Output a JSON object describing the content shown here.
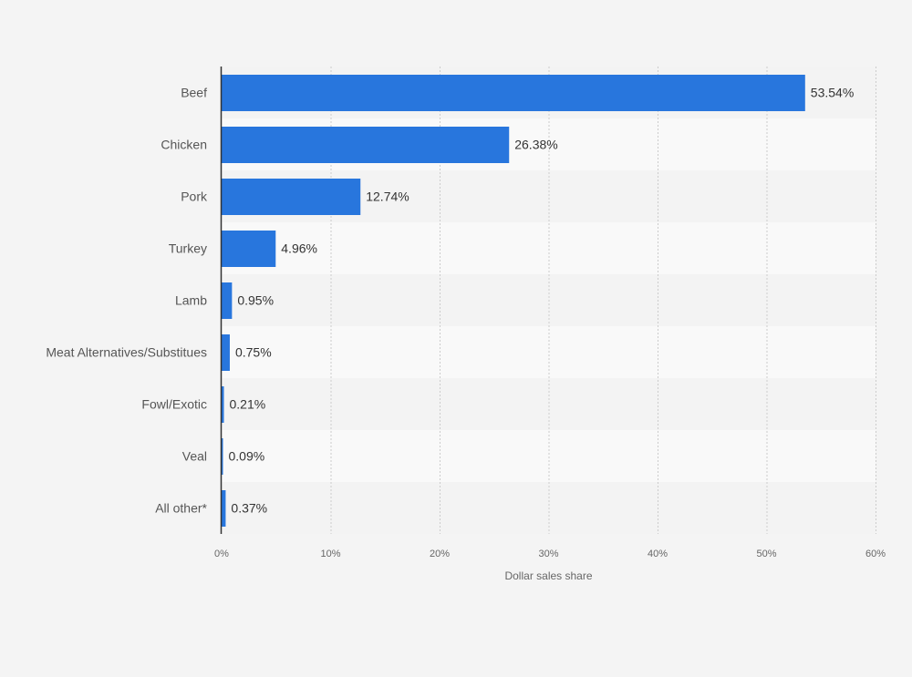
{
  "chart_data": {
    "type": "bar",
    "orientation": "horizontal",
    "categories": [
      "Beef",
      "Chicken",
      "Pork",
      "Turkey",
      "Lamb",
      "Meat Alternatives/Substitues",
      "Fowl/Exotic",
      "Veal",
      "All other*"
    ],
    "values": [
      53.54,
      26.38,
      12.74,
      4.96,
      0.95,
      0.75,
      0.21,
      0.09,
      0.37
    ],
    "value_labels": [
      "53.54%",
      "26.38%",
      "12.74%",
      "4.96%",
      "0.95%",
      "0.75%",
      "0.21%",
      "0.09%",
      "0.37%"
    ],
    "xlim": [
      0,
      60
    ],
    "x_ticks": [
      0,
      10,
      20,
      30,
      40,
      50,
      60
    ],
    "x_tick_labels": [
      "0%",
      "10%",
      "20%",
      "30%",
      "40%",
      "50%",
      "60%"
    ],
    "xlabel": "Dollar sales share",
    "ylabel": "",
    "grid": true,
    "legend": "none",
    "colors": {
      "bar": "#2876dd",
      "background": "#f4f4f4",
      "band_light": "#f9f9f9",
      "band_dark": "#f3f3f3",
      "grid": "#cccccc",
      "axis": "#333333"
    }
  }
}
